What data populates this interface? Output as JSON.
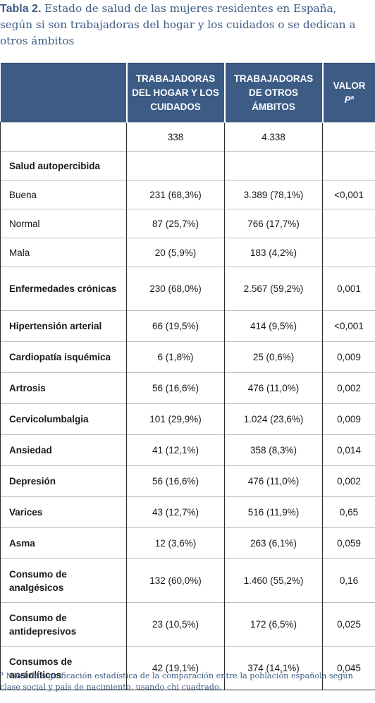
{
  "caption": {
    "label": "Tabla 2.",
    "text": "Estado de salud de las mujeres residentes en España, según si son trabajadoras del hogar y los cuidados o se dedican a otros ámbitos"
  },
  "table": {
    "headers": [
      "",
      "TRABAJADORAS DEL HOGAR Y LOS CUIDADOS",
      "TRABAJADORAS DE OTROS ÁMBITOS",
      "VALOR"
    ],
    "valor_p": "P",
    "valor_sup": "a",
    "rows": [
      {
        "label": "",
        "hogar": "338",
        "otros": "4.338",
        "p": "",
        "bold": false,
        "tall": false
      },
      {
        "label": "Salud autopercibida",
        "hogar": "",
        "otros": "",
        "p": "",
        "bold": true,
        "tall": false
      },
      {
        "label": "Buena",
        "hogar": "231 (68,3%)",
        "otros": "3.389 (78,1%)",
        "p": "<0,001",
        "bold": false,
        "tall": false
      },
      {
        "label": "Normal",
        "hogar": "87 (25,7%)",
        "otros": "766 (17,7%)",
        "p": "",
        "bold": false,
        "tall": false
      },
      {
        "label": "Mala",
        "hogar": "20 (5,9%)",
        "otros": "183 (4,2%)",
        "p": "",
        "bold": false,
        "tall": false
      },
      {
        "label": "Enfermedades crónicas",
        "hogar": "230 (68,0%)",
        "otros": "2.567 (59,2%)",
        "p": "0,001",
        "bold": true,
        "tall": true
      },
      {
        "label": "Hipertensión arterial",
        "hogar": "66 (19,5%)",
        "otros": "414 (9,5%)",
        "p": "<0,001",
        "bold": true,
        "tall": false
      },
      {
        "label": "Cardiopatía isquémica",
        "hogar": "6 (1,8%)",
        "otros": "25 (0,6%)",
        "p": "0,009",
        "bold": true,
        "tall": false
      },
      {
        "label": "Artrosis",
        "hogar": "56 (16,6%)",
        "otros": "476 (11,0%)",
        "p": "0,002",
        "bold": true,
        "tall": false
      },
      {
        "label": "Cervicolumbalgia",
        "hogar": "101 (29,9%)",
        "otros": "1.024 (23,6%)",
        "p": "0,009",
        "bold": true,
        "tall": false
      },
      {
        "label": "Ansiedad",
        "hogar": "41 (12,1%)",
        "otros": "358 (8,3%)",
        "p": "0,014",
        "bold": true,
        "tall": false
      },
      {
        "label": "Depresión",
        "hogar": "56 (16,6%)",
        "otros": "476 (11,0%)",
        "p": "0,002",
        "bold": true,
        "tall": false
      },
      {
        "label": "Varices",
        "hogar": "43 (12,7%)",
        "otros": "516 (11,9%)",
        "p": "0,65",
        "bold": true,
        "tall": false
      },
      {
        "label": "Asma",
        "hogar": "12 (3,6%)",
        "otros": "263 (6,1%)",
        "p": "0,059",
        "bold": true,
        "tall": false
      },
      {
        "label": "Consumo de analgésicos",
        "hogar": "132 (60,0%)",
        "otros": "1.460 (55,2%)",
        "p": "0,16",
        "bold": true,
        "tall": true
      },
      {
        "label": "Consumo de antidepresivos",
        "hogar": "23 (10,5%)",
        "otros": "172 (6,5%)",
        "p": "0,025",
        "bold": true,
        "tall": true
      },
      {
        "label": "Consumos de ansiolíticos",
        "hogar": "42 (19,1%)",
        "otros": "374 (14,1%)",
        "p": "0,045",
        "bold": true,
        "tall": true
      }
    ]
  },
  "footnote": {
    "mark": "a",
    "text": "Nivel de significación estadística de la comparación entre la población española según clase social y país de nacimiento, usando chi cuadrado."
  }
}
